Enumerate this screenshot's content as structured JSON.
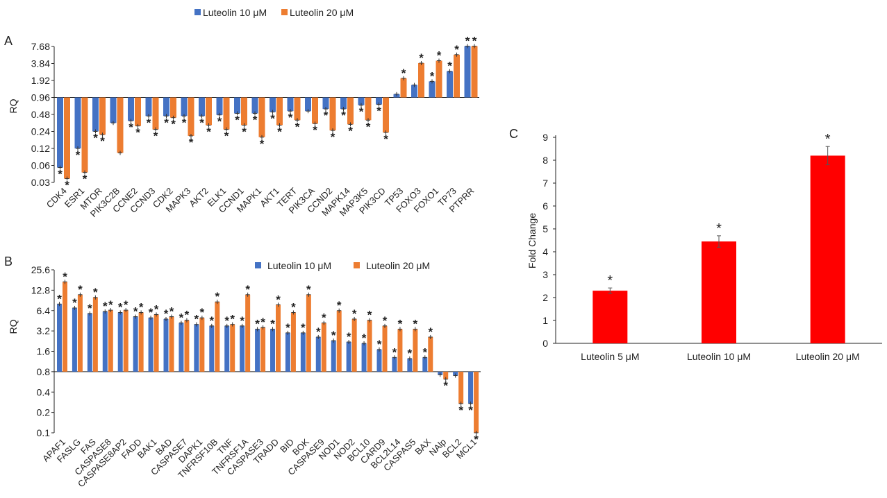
{
  "colors": {
    "s1": "#4472c4",
    "s2": "#ed7d31",
    "c": "#ff0000",
    "axis": "#222222"
  },
  "chart_data": [
    {
      "panel": "A",
      "type": "bar",
      "scale": "log2",
      "ylabel": "RQ",
      "yticks": [
        "7.68",
        "3.84",
        "1.92",
        "0.96",
        "0.48",
        "0.24",
        "0.12",
        "0.06",
        "0.03"
      ],
      "ylim": [
        0.03,
        7.68
      ],
      "baseline": 0.96,
      "categories": [
        "CDK4",
        "ESR1",
        "MTOR",
        "PIK3C2B",
        "CCNE2",
        "CCND3",
        "CDK2",
        "MAPK3",
        "AKT2",
        "ELK1",
        "CCND1",
        "MAPK1",
        "AKT1",
        "TERT",
        "PIK3CA",
        "CCND2",
        "MAPK14",
        "MAP3K5",
        "PIK3CD",
        "TP53",
        "FOXO3",
        "FOXO1",
        "TP73",
        "PTPRR"
      ],
      "series": [
        {
          "name": "Luteolin 10 μM",
          "values": [
            0.055,
            0.12,
            0.24,
            0.34,
            0.37,
            0.45,
            0.45,
            0.45,
            0.45,
            0.47,
            0.5,
            0.5,
            0.53,
            0.55,
            0.55,
            0.6,
            0.6,
            0.7,
            0.72,
            1.1,
            1.6,
            1.85,
            2.8,
            7.8
          ],
          "sig": [
            true,
            true,
            true,
            false,
            true,
            true,
            true,
            true,
            true,
            true,
            true,
            true,
            true,
            true,
            false,
            true,
            true,
            true,
            true,
            false,
            false,
            true,
            true,
            true
          ]
        },
        {
          "name": "Luteolin 20 μM",
          "values": [
            0.035,
            0.045,
            0.21,
            0.1,
            0.3,
            0.26,
            0.42,
            0.2,
            0.31,
            0.26,
            0.31,
            0.19,
            0.31,
            0.38,
            0.33,
            0.25,
            0.32,
            0.38,
            0.23,
            2.1,
            3.9,
            4.3,
            5.5,
            7.8
          ],
          "sig": [
            true,
            true,
            true,
            false,
            true,
            true,
            true,
            true,
            true,
            true,
            true,
            true,
            true,
            true,
            true,
            true,
            true,
            true,
            true,
            true,
            true,
            true,
            true,
            true
          ]
        }
      ]
    },
    {
      "panel": "B",
      "type": "bar",
      "scale": "log2",
      "ylabel": "RQ",
      "yticks": [
        "25.6",
        "12.8",
        "6.4",
        "3.2",
        "1.6",
        "0.8",
        "0.4",
        "0.2",
        "0.1"
      ],
      "ylim": [
        0.1,
        25.6
      ],
      "baseline": 0.8,
      "categories": [
        "APAF1",
        "FASLG",
        "FAS",
        "CASPASE8",
        "CASPASE8AP2",
        "FADD",
        "BAK1",
        "BAD",
        "CASPASE7",
        "DAPK1",
        "TNFRSF10B",
        "TNF",
        "TNFRSF1A",
        "CASPASE3",
        "TRADD",
        "BID",
        "BOK",
        "CASPASE9",
        "NOD1",
        "NOD2",
        "BCL10",
        "CARD9",
        "BCL2L14",
        "CASPAS5",
        "BAX",
        "NAlp",
        "BCL2",
        "MCL1"
      ],
      "series": [
        {
          "name": "Luteolin 10 μM",
          "values": [
            8.0,
            7.0,
            5.8,
            6.2,
            6.0,
            5.2,
            5.0,
            4.8,
            4.2,
            4.0,
            3.8,
            3.8,
            3.8,
            3.4,
            3.4,
            3.0,
            3.0,
            2.6,
            2.3,
            2.2,
            2.1,
            1.7,
            1.3,
            1.25,
            1.3,
            0.72,
            0.7,
            0.27
          ],
          "sig": [
            true,
            true,
            true,
            true,
            true,
            true,
            true,
            true,
            true,
            true,
            true,
            true,
            true,
            true,
            true,
            true,
            true,
            true,
            true,
            true,
            true,
            true,
            true,
            true,
            true,
            false,
            false,
            true
          ]
        },
        {
          "name": "Luteolin 20 μM",
          "values": [
            17.0,
            11.0,
            10.0,
            6.5,
            6.5,
            6.0,
            5.6,
            5.2,
            4.6,
            5.0,
            8.6,
            4.0,
            11.0,
            3.6,
            7.8,
            6.0,
            11.0,
            4.2,
            6.4,
            4.8,
            4.6,
            3.8,
            3.4,
            3.4,
            2.6,
            0.62,
            0.27,
            0.1
          ],
          "sig": [
            true,
            true,
            true,
            true,
            true,
            true,
            true,
            true,
            true,
            true,
            true,
            true,
            true,
            true,
            true,
            true,
            true,
            true,
            true,
            true,
            true,
            true,
            true,
            true,
            true,
            true,
            true,
            true
          ]
        }
      ]
    },
    {
      "panel": "C",
      "type": "bar",
      "ylabel": "Fold Change",
      "ylim": [
        0,
        9
      ],
      "yticks": [
        "0",
        "1",
        "2",
        "3",
        "4",
        "5",
        "6",
        "7",
        "8",
        "9"
      ],
      "categories": [
        "Luteolin 5 μM",
        "Luteolin 10 μM",
        "Luteolin 20 μM"
      ],
      "values": [
        2.3,
        4.45,
        8.2
      ],
      "errors": [
        0.12,
        0.25,
        0.4
      ],
      "sig": [
        true,
        true,
        true
      ]
    }
  ],
  "legend_a": {
    "s1": "Luteolin 10 μM",
    "s2": "Luteolin 20 μM"
  },
  "legend_b": {
    "s1": "Luteolin 10 μM",
    "s2": "Luteolin 20 μM"
  },
  "labels": {
    "a": "A",
    "b": "B",
    "c": "C",
    "star": "*"
  }
}
